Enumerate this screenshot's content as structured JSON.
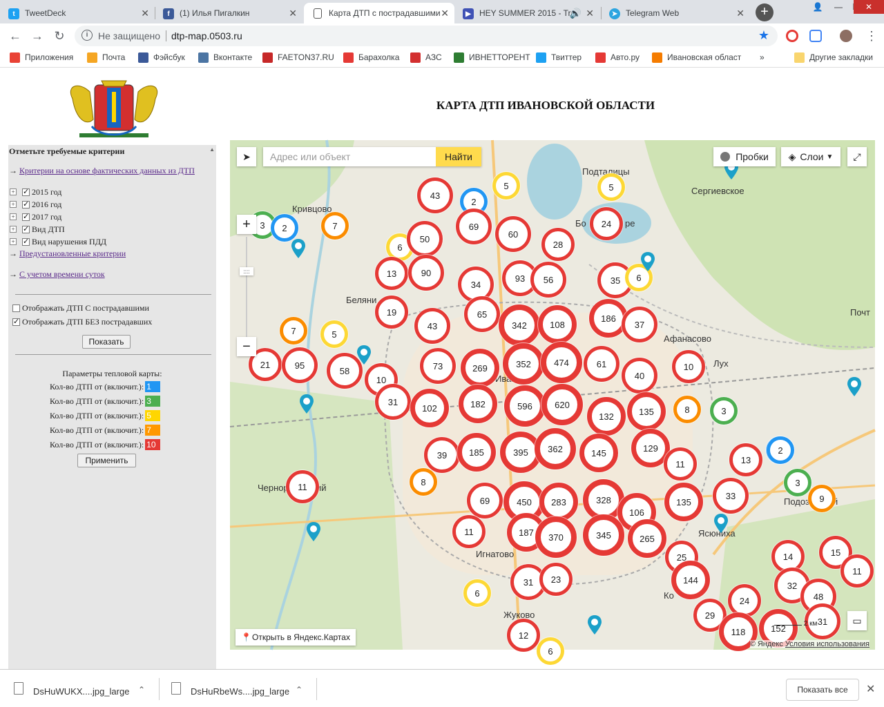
{
  "browser": {
    "tabs": [
      {
        "title": "TweetDeck",
        "color": "#1da1f2",
        "glyph": "t"
      },
      {
        "title": "(1) Илья Пигалкин",
        "color": "#3b5998",
        "glyph": "f"
      },
      {
        "title": "Карта ДТП с пострадавшими",
        "color": "#ffffff",
        "glyph": ""
      },
      {
        "title": "HEY SUMMER 2015 - Tra",
        "color": "#3f51b5",
        "glyph": "▶"
      },
      {
        "title": "Telegram Web",
        "color": "#2ca5e0",
        "glyph": "➤"
      }
    ],
    "insecure_label": "Не защищено",
    "url": "dtp-map.0503.ru",
    "bookmarks": [
      {
        "label": "Приложения",
        "color": "#e94235"
      },
      {
        "label": "Почта",
        "color": "#f5a623"
      },
      {
        "label": "Фэйсбук",
        "color": "#3b5998"
      },
      {
        "label": "Вконтакте",
        "color": "#4c75a3"
      },
      {
        "label": "FAETON37.RU",
        "color": "#c62828"
      },
      {
        "label": "Барахолка",
        "color": "#e53935"
      },
      {
        "label": "АЗС",
        "color": "#d32f2f"
      },
      {
        "label": "ИВНЕТТОРЕНТ",
        "color": "#2e7d32"
      },
      {
        "label": "Твиттер",
        "color": "#1da1f2"
      },
      {
        "label": "Авто.ру",
        "color": "#e53935"
      },
      {
        "label": "Ивановская област",
        "color": "#f57c00"
      }
    ],
    "other_bookmarks": "Другие закладки",
    "overflow": "»"
  },
  "page": {
    "title": "КАРТА ДТП ИВАНОВСКОЙ ОБЛАСТИ"
  },
  "sidebar": {
    "heading": "Отметьте требуемые критерии",
    "arrow": "→",
    "link_actual": "Критерии на основе фактических данных из ДТП",
    "tree": [
      "2015 год",
      "2016 год",
      "2017 год",
      "Вид ДТП",
      "Вид нарушения ПДД"
    ],
    "link_preset": "Предустановленные критерии",
    "link_time": "С учетом времени суток",
    "opt_injured": "Отображать ДТП С пострадавшими",
    "opt_not_injured": "Отображать ДТП БЕЗ пострадавших",
    "show_button": "Показать",
    "heat_title": "Параметры тепловой карты:",
    "heat_rows": [
      {
        "label": "Кол-во ДТП от (включит.):",
        "value": "1",
        "color": "#2196f3"
      },
      {
        "label": "Кол-во ДТП от (включит.):",
        "value": "3",
        "color": "#4caf50"
      },
      {
        "label": "Кол-во ДТП от (включит.):",
        "value": "5",
        "color": "#ffd600"
      },
      {
        "label": "Кол-во ДТП от (включит.):",
        "value": "7",
        "color": "#ff9800"
      },
      {
        "label": "Кол-во ДТП от (включит.):",
        "value": "10",
        "color": "#e53935"
      }
    ],
    "apply_button": "Применить"
  },
  "map": {
    "search_placeholder": "Адрес или объект",
    "find_button": "Найти",
    "traffic": "Пробки",
    "layers": "Слои",
    "zoom_in": "+",
    "zoom_out": "−",
    "open_link": "Открыть в Яндекс.Картах",
    "copyright": "© Яндекс",
    "terms": "Условия использования",
    "scale": "2 км",
    "place_labels": [
      "Подталицы",
      "Сергиевское",
      "Кривцово",
      "Беляни",
      "Афанасово",
      "Лух",
      "Иваново",
      "Чернореченский",
      "Ясюниха",
      "Игнатово",
      "Жуково",
      "Подозёрский",
      "Почт",
      "Бо",
      "ре",
      "Ко"
    ],
    "colors": {
      "blue": "#2196f3",
      "green": "#4caf50",
      "yellow": "#fdd835",
      "orange": "#fb8c00",
      "red": "#e53935",
      "pin": "#1ba0c9"
    },
    "clusters": [
      {
        "n": "43",
        "c": "red"
      },
      {
        "n": "2",
        "c": "blue"
      },
      {
        "n": "5",
        "c": "yellow"
      },
      {
        "n": "5",
        "c": "yellow"
      },
      {
        "n": "3",
        "c": "green"
      },
      {
        "n": "2",
        "c": "blue"
      },
      {
        "n": "7",
        "c": "orange"
      },
      {
        "n": "69",
        "c": "red"
      },
      {
        "n": "60",
        "c": "red"
      },
      {
        "n": "24",
        "c": "red"
      },
      {
        "n": "6",
        "c": "yellow"
      },
      {
        "n": "50",
        "c": "red"
      },
      {
        "n": "28",
        "c": "red"
      },
      {
        "n": "13",
        "c": "red"
      },
      {
        "n": "90",
        "c": "red"
      },
      {
        "n": "93",
        "c": "red"
      },
      {
        "n": "56",
        "c": "red"
      },
      {
        "n": "35",
        "c": "red"
      },
      {
        "n": "6",
        "c": "yellow"
      },
      {
        "n": "34",
        "c": "red"
      },
      {
        "n": "19",
        "c": "red"
      },
      {
        "n": "65",
        "c": "red"
      },
      {
        "n": "342",
        "c": "red"
      },
      {
        "n": "108",
        "c": "red"
      },
      {
        "n": "186",
        "c": "red"
      },
      {
        "n": "37",
        "c": "red"
      },
      {
        "n": "43",
        "c": "red"
      },
      {
        "n": "7",
        "c": "orange"
      },
      {
        "n": "5",
        "c": "yellow"
      },
      {
        "n": "21",
        "c": "red"
      },
      {
        "n": "95",
        "c": "red"
      },
      {
        "n": "58",
        "c": "red"
      },
      {
        "n": "73",
        "c": "red"
      },
      {
        "n": "269",
        "c": "red"
      },
      {
        "n": "352",
        "c": "red"
      },
      {
        "n": "474",
        "c": "red"
      },
      {
        "n": "61",
        "c": "red"
      },
      {
        "n": "10",
        "c": "red"
      },
      {
        "n": "40",
        "c": "red"
      },
      {
        "n": "10",
        "c": "red"
      },
      {
        "n": "31",
        "c": "red"
      },
      {
        "n": "102",
        "c": "red"
      },
      {
        "n": "182",
        "c": "red"
      },
      {
        "n": "596",
        "c": "red"
      },
      {
        "n": "620",
        "c": "red"
      },
      {
        "n": "132",
        "c": "red"
      },
      {
        "n": "135",
        "c": "red"
      },
      {
        "n": "8",
        "c": "orange"
      },
      {
        "n": "3",
        "c": "green"
      },
      {
        "n": "2",
        "c": "blue"
      },
      {
        "n": "39",
        "c": "red"
      },
      {
        "n": "185",
        "c": "red"
      },
      {
        "n": "395",
        "c": "red"
      },
      {
        "n": "362",
        "c": "red"
      },
      {
        "n": "145",
        "c": "red"
      },
      {
        "n": "129",
        "c": "red"
      },
      {
        "n": "11",
        "c": "red"
      },
      {
        "n": "13",
        "c": "red"
      },
      {
        "n": "2",
        "c": "blue"
      },
      {
        "n": "8",
        "c": "orange"
      },
      {
        "n": "11",
        "c": "red"
      },
      {
        "n": "69",
        "c": "red"
      },
      {
        "n": "450",
        "c": "red"
      },
      {
        "n": "283",
        "c": "red"
      },
      {
        "n": "328",
        "c": "red"
      },
      {
        "n": "106",
        "c": "red"
      },
      {
        "n": "135",
        "c": "red"
      },
      {
        "n": "33",
        "c": "red"
      },
      {
        "n": "3",
        "c": "green"
      },
      {
        "n": "9",
        "c": "orange"
      },
      {
        "n": "11",
        "c": "red"
      },
      {
        "n": "187",
        "c": "red"
      },
      {
        "n": "370",
        "c": "red"
      },
      {
        "n": "345",
        "c": "red"
      },
      {
        "n": "265",
        "c": "red"
      },
      {
        "n": "25",
        "c": "red"
      },
      {
        "n": "14",
        "c": "red"
      },
      {
        "n": "15",
        "c": "red"
      },
      {
        "n": "11",
        "c": "red"
      },
      {
        "n": "144",
        "c": "red"
      },
      {
        "n": "32",
        "c": "red"
      },
      {
        "n": "31",
        "c": "red"
      },
      {
        "n": "23",
        "c": "red"
      },
      {
        "n": "6",
        "c": "yellow"
      },
      {
        "n": "48",
        "c": "red"
      },
      {
        "n": "24",
        "c": "red"
      },
      {
        "n": "29",
        "c": "red"
      },
      {
        "n": "118",
        "c": "red"
      },
      {
        "n": "152",
        "c": "red"
      },
      {
        "n": "31",
        "c": "red"
      },
      {
        "n": "12",
        "c": "red"
      },
      {
        "n": "6",
        "c": "yellow"
      }
    ]
  },
  "downloads": {
    "items": [
      "DsHuWUKX....jpg_large",
      "DsHuRbeWs....jpg_large"
    ],
    "show_all": "Показать все"
  }
}
